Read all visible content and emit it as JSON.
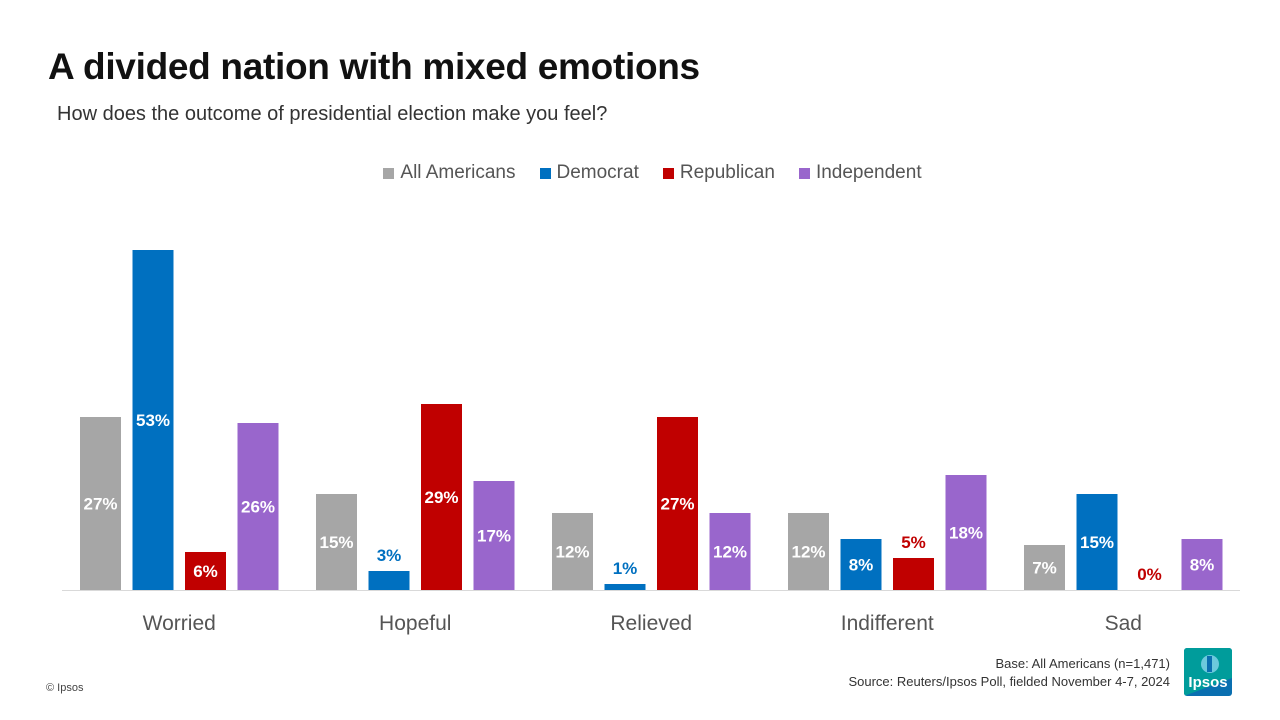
{
  "header": {
    "title": "A divided nation with mixed emotions",
    "subtitle": "How does the outcome of presidential election make you feel?"
  },
  "legend": {
    "items": [
      {
        "label": "All Americans",
        "color": "#a6a6a6"
      },
      {
        "label": "Democrat",
        "color": "#0070c0"
      },
      {
        "label": "Republican",
        "color": "#c00000"
      },
      {
        "label": "Independent",
        "color": "#9966cc"
      }
    ]
  },
  "chart_data": {
    "type": "bar",
    "categories": [
      "Worried",
      "Hopeful",
      "Relieved",
      "Indifferent",
      "Sad"
    ],
    "series": [
      {
        "name": "All Americans",
        "color": "#a6a6a6",
        "values": [
          27,
          15,
          12,
          12,
          7
        ],
        "labels": [
          "27%",
          "15%",
          "12%",
          "12%",
          "7%"
        ]
      },
      {
        "name": "Democrat",
        "color": "#0070c0",
        "values": [
          53,
          3,
          1,
          8,
          15
        ],
        "labels": [
          "53%",
          "3%",
          "1%",
          "8%",
          "15%"
        ]
      },
      {
        "name": "Republican",
        "color": "#c00000",
        "values": [
          6,
          29,
          27,
          5,
          0
        ],
        "labels": [
          "6%",
          "29%",
          "27%",
          "5%",
          "0%"
        ]
      },
      {
        "name": "Independent",
        "color": "#9966cc",
        "values": [
          26,
          17,
          12,
          18,
          8
        ],
        "labels": [
          "26%",
          "17%",
          "12%",
          "18%",
          "8%"
        ]
      }
    ],
    "ylim": [
      0,
      53
    ],
    "grid": false,
    "legend_position": "top"
  },
  "footer": {
    "base": "Base: All Americans (n=1,471)",
    "source": "Source: Reuters/Ipsos Poll, fielded November 4-7, 2024",
    "copyright": "© Ipsos",
    "logo_text": "Ipsos"
  }
}
